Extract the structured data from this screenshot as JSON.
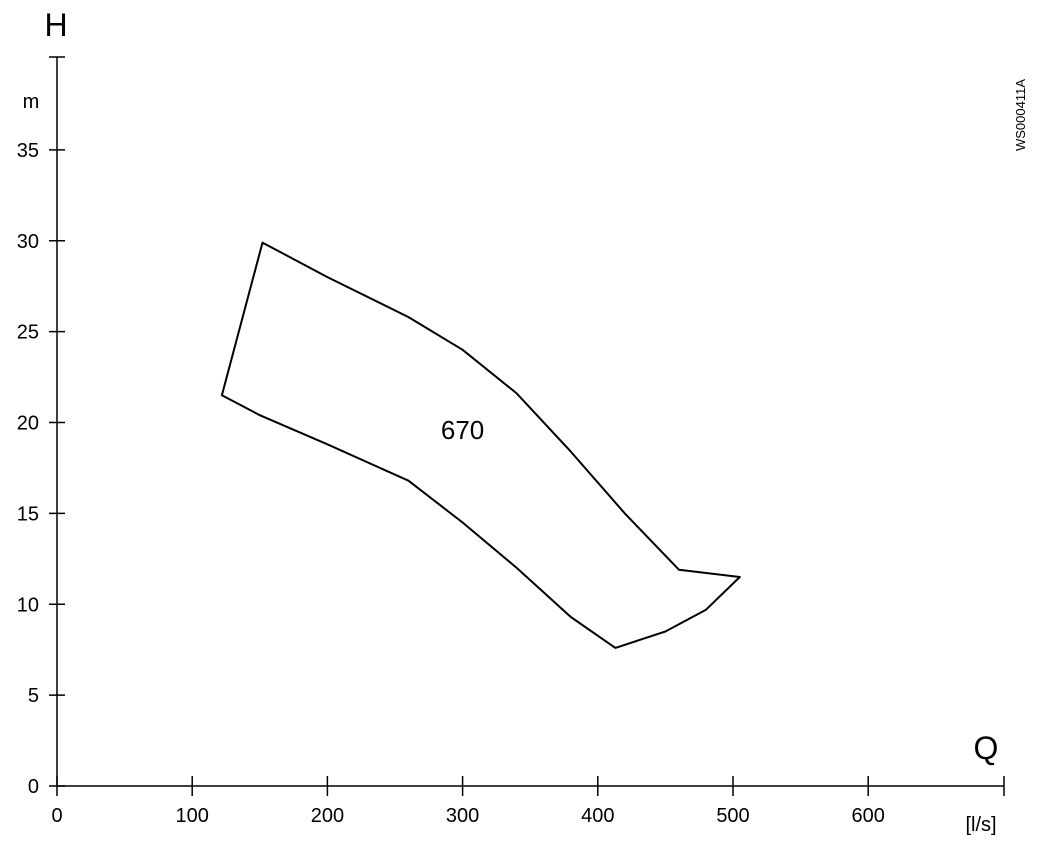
{
  "chart_data": {
    "type": "area",
    "x_axis_letter": "Q",
    "x_unit": "[l/s]",
    "y_axis_letter": "H",
    "y_unit": "m",
    "xlim": [
      0,
      700
    ],
    "ylim": [
      0,
      40
    ],
    "x_ticks": [
      0,
      100,
      200,
      300,
      400,
      500,
      600
    ],
    "y_ticks": [
      0,
      5,
      10,
      15,
      20,
      25,
      30,
      35
    ],
    "x_tick_labels": [
      "0",
      "100",
      "200",
      "300",
      "400",
      "500",
      "600"
    ],
    "y_tick_labels": [
      "0",
      "5",
      "10",
      "15",
      "20",
      "25",
      "30",
      "35"
    ],
    "grid": false,
    "region_label": "670",
    "region_label_position": {
      "x": 300,
      "y": 19.6
    },
    "region_boundary": [
      {
        "x": 122,
        "y": 21.5
      },
      {
        "x": 152,
        "y": 29.9
      },
      {
        "x": 200,
        "y": 28.0
      },
      {
        "x": 260,
        "y": 25.8
      },
      {
        "x": 300,
        "y": 24.0
      },
      {
        "x": 340,
        "y": 21.6
      },
      {
        "x": 380,
        "y": 18.4
      },
      {
        "x": 420,
        "y": 15.0
      },
      {
        "x": 460,
        "y": 11.9
      },
      {
        "x": 505,
        "y": 11.5
      },
      {
        "x": 480,
        "y": 9.7
      },
      {
        "x": 450,
        "y": 8.5
      },
      {
        "x": 413,
        "y": 7.6
      },
      {
        "x": 380,
        "y": 9.3
      },
      {
        "x": 340,
        "y": 12.0
      },
      {
        "x": 300,
        "y": 14.5
      },
      {
        "x": 260,
        "y": 16.8
      },
      {
        "x": 200,
        "y": 18.8
      },
      {
        "x": 150,
        "y": 20.4
      },
      {
        "x": 122,
        "y": 21.5
      }
    ],
    "figure_code": "WS000411A"
  }
}
